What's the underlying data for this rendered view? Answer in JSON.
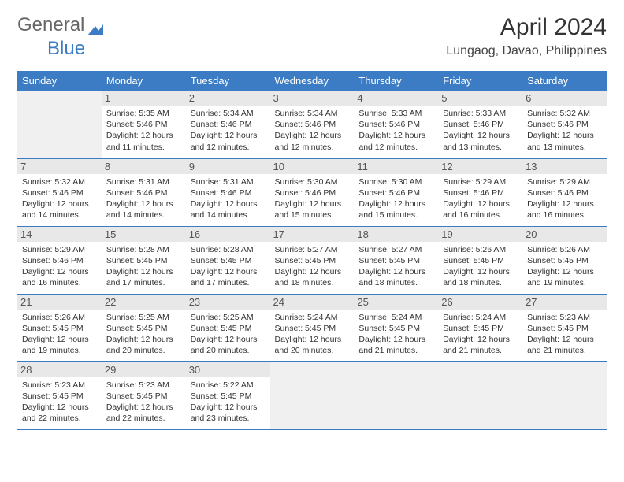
{
  "logo": {
    "text1": "General",
    "text2": "Blue"
  },
  "header": {
    "month": "April 2024",
    "location": "Lungaog, Davao, Philippines"
  },
  "weekdays": [
    "Sunday",
    "Monday",
    "Tuesday",
    "Wednesday",
    "Thursday",
    "Friday",
    "Saturday"
  ],
  "colors": {
    "headerBg": "#3b7cc4",
    "rowBorder": "#3b7cc4",
    "emptyBg": "#f0f0f0",
    "dayNumBg": "#e8e8e8"
  },
  "typography": {
    "title_fontsize": 30,
    "location_fontsize": 16,
    "weekday_fontsize": 13,
    "daynum_fontsize": 13,
    "body_fontsize": 10.5
  },
  "grid": {
    "rows": 5,
    "cols": 7,
    "start_offset": 1,
    "days_in_month": 30
  },
  "days": [
    {
      "n": 1,
      "sunrise": "5:35 AM",
      "sunset": "5:46 PM",
      "daylight": "12 hours and 11 minutes."
    },
    {
      "n": 2,
      "sunrise": "5:34 AM",
      "sunset": "5:46 PM",
      "daylight": "12 hours and 12 minutes."
    },
    {
      "n": 3,
      "sunrise": "5:34 AM",
      "sunset": "5:46 PM",
      "daylight": "12 hours and 12 minutes."
    },
    {
      "n": 4,
      "sunrise": "5:33 AM",
      "sunset": "5:46 PM",
      "daylight": "12 hours and 12 minutes."
    },
    {
      "n": 5,
      "sunrise": "5:33 AM",
      "sunset": "5:46 PM",
      "daylight": "12 hours and 13 minutes."
    },
    {
      "n": 6,
      "sunrise": "5:32 AM",
      "sunset": "5:46 PM",
      "daylight": "12 hours and 13 minutes."
    },
    {
      "n": 7,
      "sunrise": "5:32 AM",
      "sunset": "5:46 PM",
      "daylight": "12 hours and 14 minutes."
    },
    {
      "n": 8,
      "sunrise": "5:31 AM",
      "sunset": "5:46 PM",
      "daylight": "12 hours and 14 minutes."
    },
    {
      "n": 9,
      "sunrise": "5:31 AM",
      "sunset": "5:46 PM",
      "daylight": "12 hours and 14 minutes."
    },
    {
      "n": 10,
      "sunrise": "5:30 AM",
      "sunset": "5:46 PM",
      "daylight": "12 hours and 15 minutes."
    },
    {
      "n": 11,
      "sunrise": "5:30 AM",
      "sunset": "5:46 PM",
      "daylight": "12 hours and 15 minutes."
    },
    {
      "n": 12,
      "sunrise": "5:29 AM",
      "sunset": "5:46 PM",
      "daylight": "12 hours and 16 minutes."
    },
    {
      "n": 13,
      "sunrise": "5:29 AM",
      "sunset": "5:46 PM",
      "daylight": "12 hours and 16 minutes."
    },
    {
      "n": 14,
      "sunrise": "5:29 AM",
      "sunset": "5:46 PM",
      "daylight": "12 hours and 16 minutes."
    },
    {
      "n": 15,
      "sunrise": "5:28 AM",
      "sunset": "5:45 PM",
      "daylight": "12 hours and 17 minutes."
    },
    {
      "n": 16,
      "sunrise": "5:28 AM",
      "sunset": "5:45 PM",
      "daylight": "12 hours and 17 minutes."
    },
    {
      "n": 17,
      "sunrise": "5:27 AM",
      "sunset": "5:45 PM",
      "daylight": "12 hours and 18 minutes."
    },
    {
      "n": 18,
      "sunrise": "5:27 AM",
      "sunset": "5:45 PM",
      "daylight": "12 hours and 18 minutes."
    },
    {
      "n": 19,
      "sunrise": "5:26 AM",
      "sunset": "5:45 PM",
      "daylight": "12 hours and 18 minutes."
    },
    {
      "n": 20,
      "sunrise": "5:26 AM",
      "sunset": "5:45 PM",
      "daylight": "12 hours and 19 minutes."
    },
    {
      "n": 21,
      "sunrise": "5:26 AM",
      "sunset": "5:45 PM",
      "daylight": "12 hours and 19 minutes."
    },
    {
      "n": 22,
      "sunrise": "5:25 AM",
      "sunset": "5:45 PM",
      "daylight": "12 hours and 20 minutes."
    },
    {
      "n": 23,
      "sunrise": "5:25 AM",
      "sunset": "5:45 PM",
      "daylight": "12 hours and 20 minutes."
    },
    {
      "n": 24,
      "sunrise": "5:24 AM",
      "sunset": "5:45 PM",
      "daylight": "12 hours and 20 minutes."
    },
    {
      "n": 25,
      "sunrise": "5:24 AM",
      "sunset": "5:45 PM",
      "daylight": "12 hours and 21 minutes."
    },
    {
      "n": 26,
      "sunrise": "5:24 AM",
      "sunset": "5:45 PM",
      "daylight": "12 hours and 21 minutes."
    },
    {
      "n": 27,
      "sunrise": "5:23 AM",
      "sunset": "5:45 PM",
      "daylight": "12 hours and 21 minutes."
    },
    {
      "n": 28,
      "sunrise": "5:23 AM",
      "sunset": "5:45 PM",
      "daylight": "12 hours and 22 minutes."
    },
    {
      "n": 29,
      "sunrise": "5:23 AM",
      "sunset": "5:45 PM",
      "daylight": "12 hours and 22 minutes."
    },
    {
      "n": 30,
      "sunrise": "5:22 AM",
      "sunset": "5:45 PM",
      "daylight": "12 hours and 23 minutes."
    }
  ],
  "labels": {
    "sunrise": "Sunrise:",
    "sunset": "Sunset:",
    "daylight": "Daylight:"
  }
}
